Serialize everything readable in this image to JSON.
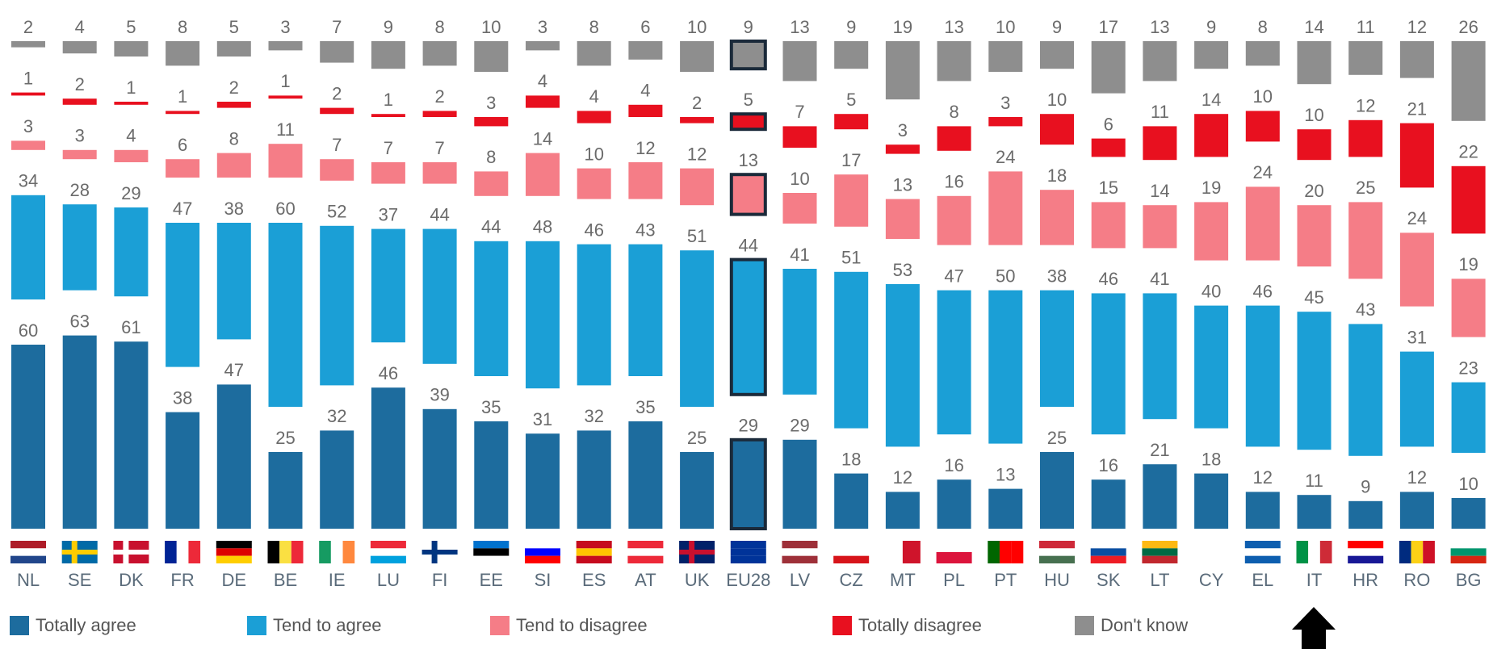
{
  "chart_data": {
    "type": "bar",
    "stacked": true,
    "categories": [
      "NL",
      "SE",
      "DK",
      "FR",
      "DE",
      "BE",
      "IE",
      "LU",
      "FI",
      "EE",
      "SI",
      "ES",
      "AT",
      "UK",
      "EU28",
      "LV",
      "CZ",
      "MT",
      "PL",
      "PT",
      "HU",
      "SK",
      "LT",
      "CY",
      "EL",
      "IT",
      "HR",
      "RO",
      "BG"
    ],
    "series": [
      {
        "name": "Totally agree",
        "color": "#1d6c9e",
        "values": [
          60,
          63,
          61,
          38,
          47,
          25,
          32,
          46,
          39,
          35,
          31,
          32,
          35,
          25,
          29,
          29,
          18,
          12,
          16,
          13,
          25,
          16,
          21,
          18,
          12,
          11,
          9,
          12,
          10
        ]
      },
      {
        "name": "Tend to agree",
        "color": "#1b9fd6",
        "values": [
          34,
          28,
          29,
          47,
          38,
          60,
          52,
          37,
          44,
          44,
          48,
          46,
          43,
          51,
          44,
          41,
          51,
          53,
          47,
          50,
          38,
          46,
          41,
          40,
          46,
          45,
          43,
          31,
          23
        ]
      },
      {
        "name": "Tend to disagree",
        "color": "#f57d87",
        "values": [
          3,
          3,
          4,
          6,
          8,
          11,
          7,
          7,
          7,
          8,
          14,
          10,
          12,
          12,
          13,
          10,
          17,
          13,
          16,
          24,
          18,
          15,
          14,
          19,
          24,
          20,
          25,
          24,
          19
        ]
      },
      {
        "name": "Totally disagree",
        "color": "#e8101f",
        "values": [
          1,
          2,
          1,
          1,
          2,
          1,
          2,
          1,
          2,
          3,
          4,
          4,
          4,
          2,
          5,
          7,
          5,
          3,
          8,
          3,
          10,
          6,
          11,
          14,
          10,
          10,
          12,
          21,
          22
        ]
      },
      {
        "name": "Don't know",
        "color": "#8e8e8e",
        "values": [
          2,
          4,
          5,
          8,
          5,
          3,
          7,
          9,
          8,
          10,
          3,
          8,
          6,
          10,
          9,
          13,
          9,
          19,
          13,
          10,
          9,
          17,
          13,
          9,
          8,
          14,
          11,
          12,
          26
        ]
      }
    ],
    "highlight": 14
  }
}
